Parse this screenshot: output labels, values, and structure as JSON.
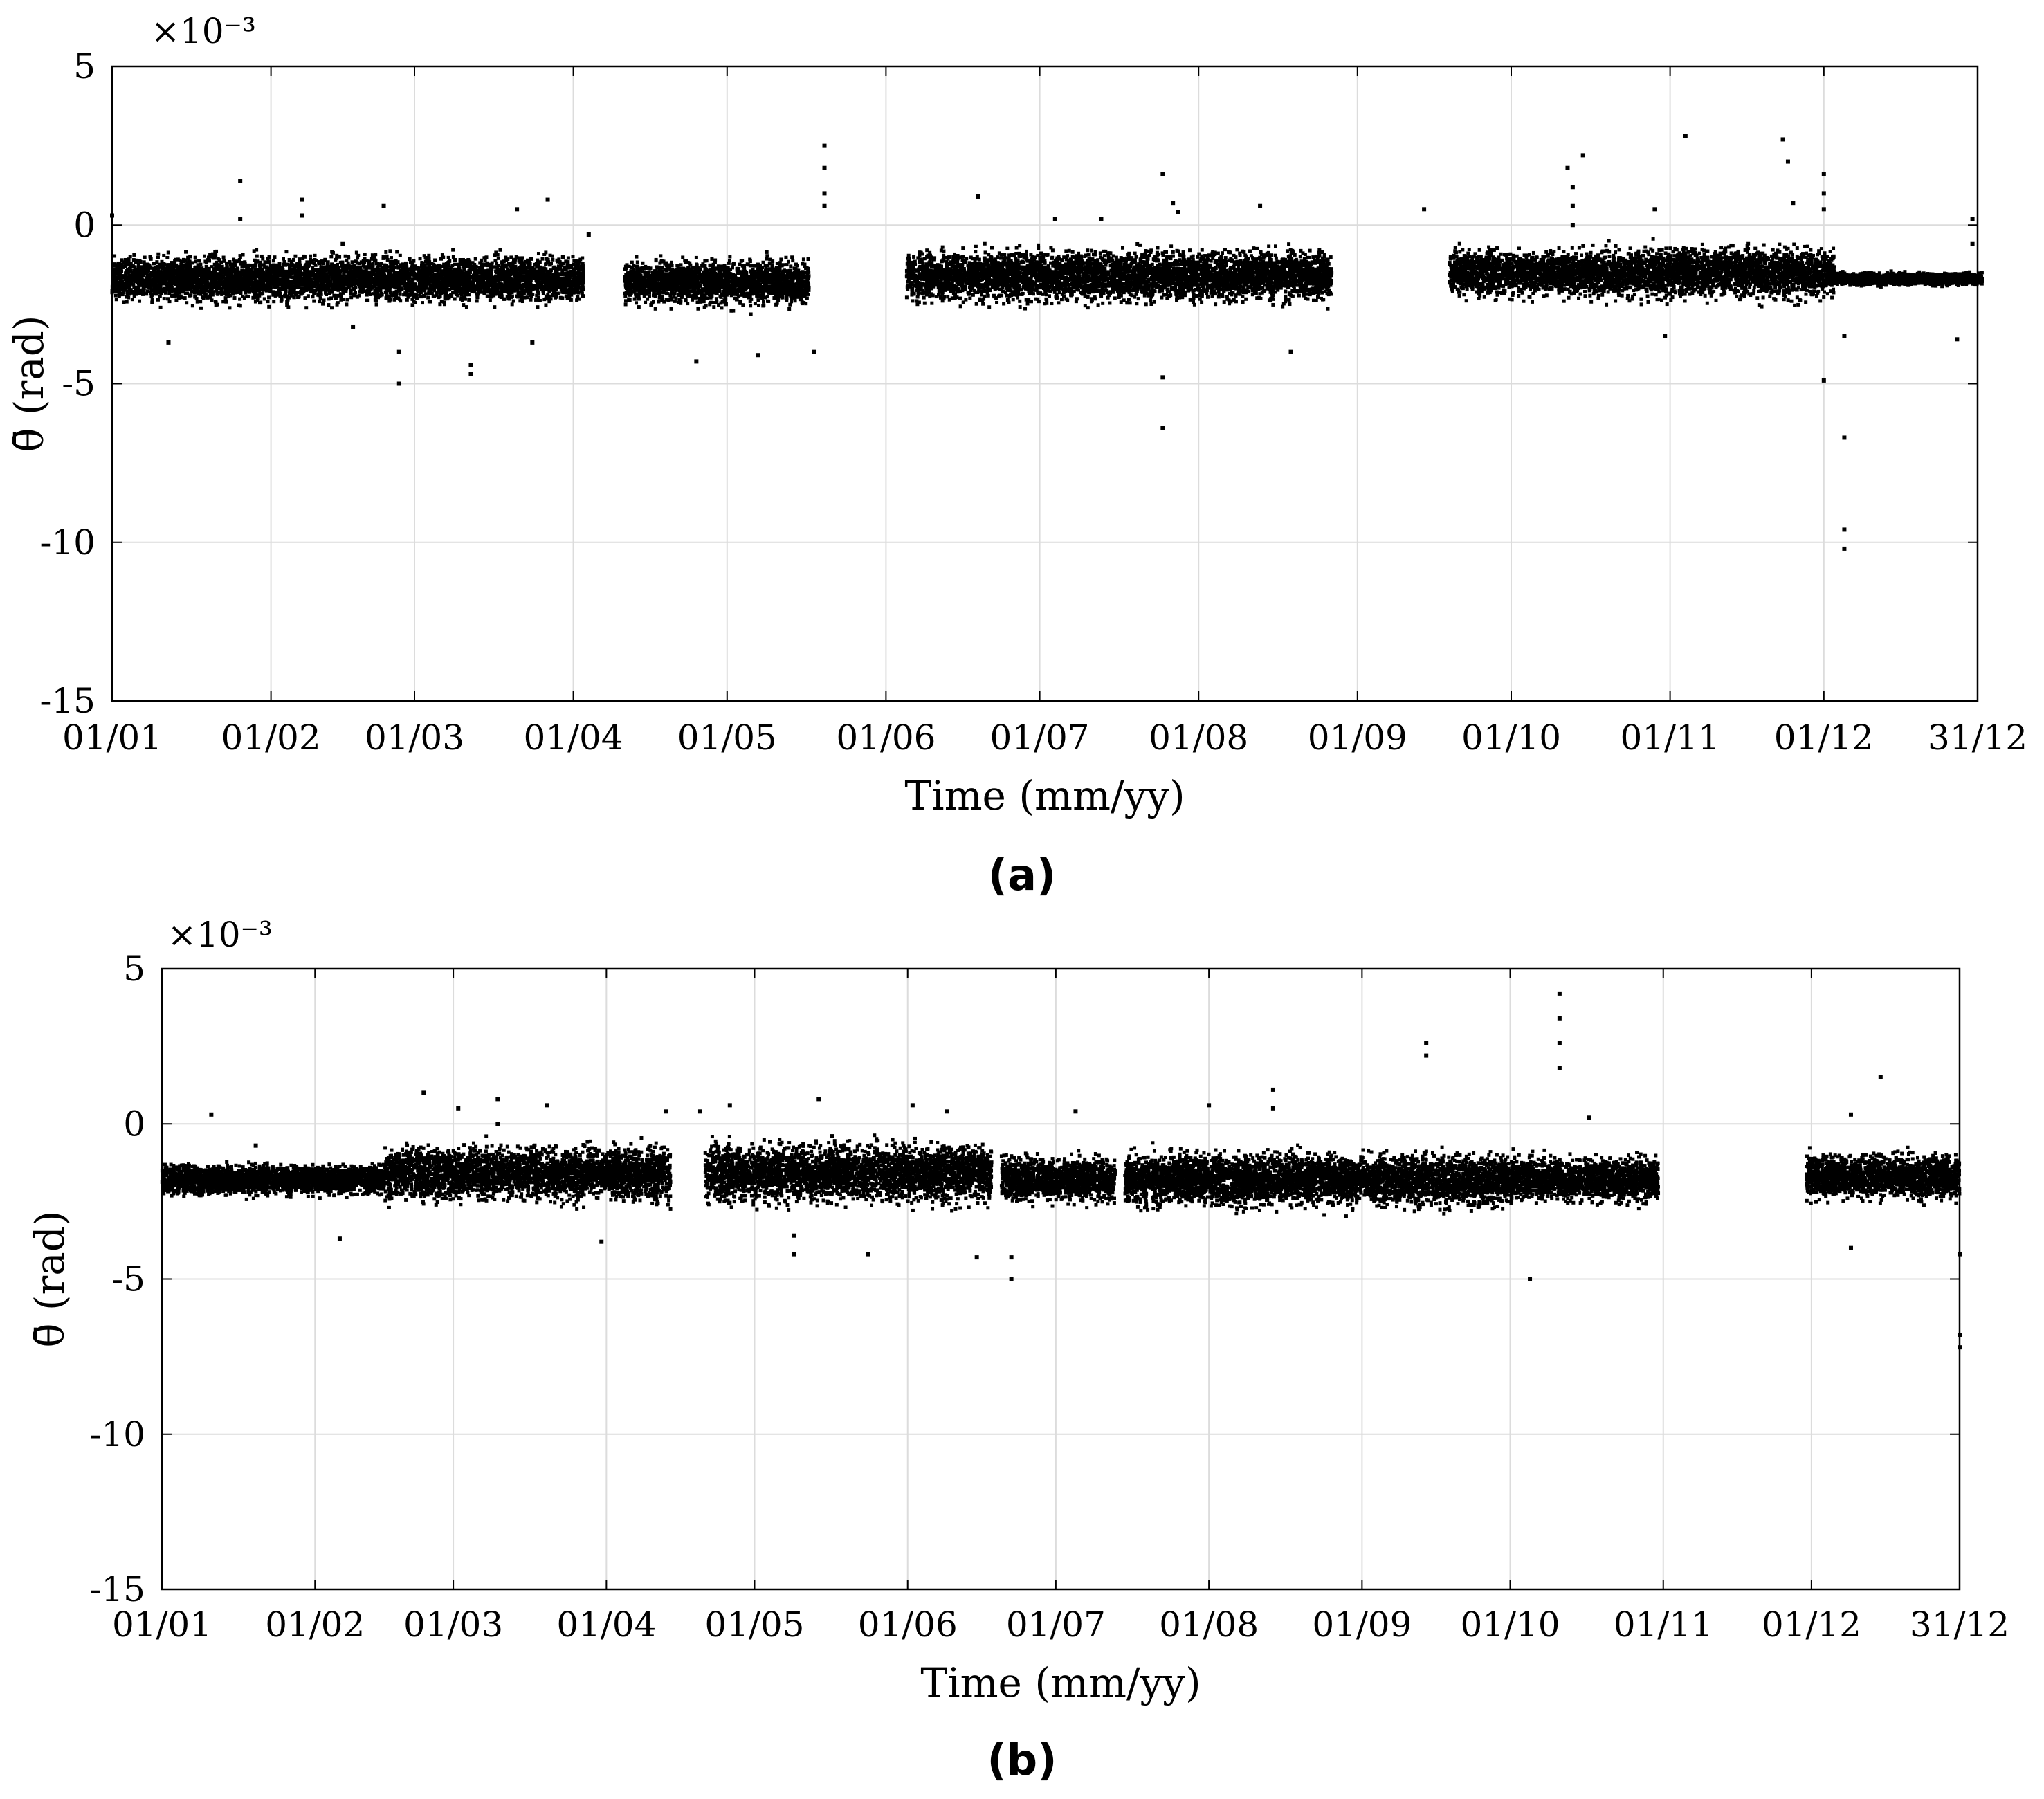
{
  "chart_data": [
    {
      "type": "scatter",
      "panel_label": "(a)",
      "xlabel": "Time (mm/yy)",
      "ylabel": "θ̄ (rad)",
      "y_exponent_label": "×10⁻³",
      "ylim": [
        -15,
        5
      ],
      "yticks": [
        "5",
        "0",
        "-5",
        "-10",
        "-15"
      ],
      "xticks": [
        "01/01",
        "01/02",
        "01/03",
        "01/04",
        "01/05",
        "01/06",
        "01/07",
        "01/08",
        "01/09",
        "01/10",
        "01/11",
        "01/12",
        "31/12"
      ],
      "grid": true,
      "marker_color": "#000000",
      "segments": [
        {
          "start_day": 0,
          "end_day": 92,
          "mean": -1.7,
          "spread": 0.45
        },
        {
          "start_day": 100,
          "end_day": 136,
          "mean": -1.8,
          "spread": 0.45
        },
        {
          "start_day": 155,
          "end_day": 238,
          "mean": -1.6,
          "spread": 0.5
        },
        {
          "start_day": 261,
          "end_day": 290,
          "mean": -1.5,
          "spread": 0.45
        },
        {
          "start_day": 290,
          "end_day": 336,
          "mean": -1.5,
          "spread": 0.5
        },
        {
          "start_day": 336,
          "end_day": 365,
          "mean": -1.7,
          "spread": 0.12
        }
      ],
      "outliers": [
        {
          "x": "01/01",
          "y": 0.3
        },
        {
          "x": "26/01",
          "y": 1.4
        },
        {
          "x": "26/01",
          "y": 0.2
        },
        {
          "x": "12/01",
          "y": -3.7
        },
        {
          "x": "07/02",
          "y": 0.8
        },
        {
          "x": "07/02",
          "y": 0.3
        },
        {
          "x": "15/02",
          "y": -0.6
        },
        {
          "x": "17/02",
          "y": -3.2
        },
        {
          "x": "26/02",
          "y": -4.0
        },
        {
          "x": "26/02",
          "y": -5.0
        },
        {
          "x": "23/02",
          "y": -1.0
        },
        {
          "x": "12/03",
          "y": -4.4
        },
        {
          "x": "12/03",
          "y": -4.7
        },
        {
          "x": "23/02",
          "y": 0.6
        },
        {
          "x": "21/03",
          "y": 0.5
        },
        {
          "x": "30/03",
          "y": -1.0
        },
        {
          "x": "24/03",
          "y": -3.7
        },
        {
          "x": "27/03",
          "y": 0.8
        },
        {
          "x": "04/04",
          "y": -0.3
        },
        {
          "x": "25/04",
          "y": -4.3
        },
        {
          "x": "07/05",
          "y": -4.1
        },
        {
          "x": "20/05",
          "y": 2.5
        },
        {
          "x": "20/05",
          "y": 1.8
        },
        {
          "x": "20/05",
          "y": 1.0
        },
        {
          "x": "20/05",
          "y": 0.6
        },
        {
          "x": "18/05",
          "y": -4.0
        },
        {
          "x": "19/06",
          "y": 0.9
        },
        {
          "x": "25/07",
          "y": 1.6
        },
        {
          "x": "27/07",
          "y": 0.7
        },
        {
          "x": "28/07",
          "y": 0.4
        },
        {
          "x": "25/07",
          "y": -4.8
        },
        {
          "x": "25/07",
          "y": -6.4
        },
        {
          "x": "13/08",
          "y": 0.6
        },
        {
          "x": "19/08",
          "y": -4.0
        },
        {
          "x": "04/07",
          "y": 0.2
        },
        {
          "x": "13/07",
          "y": 0.2
        },
        {
          "x": "14/09",
          "y": 0.5
        },
        {
          "x": "12/10",
          "y": 1.8
        },
        {
          "x": "15/10",
          "y": 2.2
        },
        {
          "x": "13/10",
          "y": 1.2
        },
        {
          "x": "13/10",
          "y": 0.6
        },
        {
          "x": "13/10",
          "y": 0.0
        },
        {
          "x": "04/11",
          "y": 2.8
        },
        {
          "x": "29/10",
          "y": 0.5
        },
        {
          "x": "31/10",
          "y": -3.5
        },
        {
          "x": "23/11",
          "y": 2.7
        },
        {
          "x": "24/11",
          "y": 2.0
        },
        {
          "x": "25/11",
          "y": 0.7
        },
        {
          "x": "01/12",
          "y": 1.6
        },
        {
          "x": "01/12",
          "y": 1.0
        },
        {
          "x": "01/12",
          "y": 0.5
        },
        {
          "x": "01/12",
          "y": -4.9
        },
        {
          "x": "05/12",
          "y": -3.5
        },
        {
          "x": "05/12",
          "y": -6.7
        },
        {
          "x": "05/12",
          "y": -9.6
        },
        {
          "x": "05/12",
          "y": -10.2
        },
        {
          "x": "30/12",
          "y": 0.2
        },
        {
          "x": "30/12",
          "y": -0.6
        },
        {
          "x": "27/12",
          "y": -3.6
        }
      ]
    },
    {
      "type": "scatter",
      "panel_label": "(b)",
      "xlabel": "Time (mm/yy)",
      "ylabel": "θ̄ (rad)",
      "y_exponent_label": "×10⁻³",
      "ylim": [
        -15,
        5
      ],
      "yticks": [
        "5",
        "0",
        "-5",
        "-10",
        "-15"
      ],
      "xticks": [
        "01/01",
        "01/02",
        "01/03",
        "01/04",
        "01/05",
        "01/06",
        "01/07",
        "01/08",
        "01/09",
        "01/10",
        "01/11",
        "01/12",
        "31/12"
      ],
      "grid": true,
      "marker_color": "#000000",
      "segments": [
        {
          "start_day": 0,
          "end_day": 45,
          "mean": -1.8,
          "spread": 0.3
        },
        {
          "start_day": 45,
          "end_day": 103,
          "mean": -1.6,
          "spread": 0.55
        },
        {
          "start_day": 110,
          "end_day": 168,
          "mean": -1.6,
          "spread": 0.6
        },
        {
          "start_day": 170,
          "end_day": 193,
          "mean": -1.8,
          "spread": 0.45
        },
        {
          "start_day": 195,
          "end_day": 272,
          "mean": -1.8,
          "spread": 0.55
        },
        {
          "start_day": 272,
          "end_day": 303,
          "mean": -1.8,
          "spread": 0.45
        },
        {
          "start_day": 333,
          "end_day": 364,
          "mean": -1.7,
          "spread": 0.45
        }
      ],
      "outliers": [
        {
          "x": "11/01",
          "y": 0.3
        },
        {
          "x": "20/01",
          "y": -0.7
        },
        {
          "x": "06/02",
          "y": -3.7
        },
        {
          "x": "23/02",
          "y": 1.0
        },
        {
          "x": "02/03",
          "y": 0.5
        },
        {
          "x": "10/03",
          "y": 0.8
        },
        {
          "x": "10/03",
          "y": 0.0
        },
        {
          "x": "20/03",
          "y": 0.6
        },
        {
          "x": "31/03",
          "y": -3.8
        },
        {
          "x": "13/04",
          "y": 0.4
        },
        {
          "x": "20/04",
          "y": 0.4
        },
        {
          "x": "26/04",
          "y": 0.6
        },
        {
          "x": "09/05",
          "y": -4.2
        },
        {
          "x": "09/05",
          "y": -3.6
        },
        {
          "x": "14/05",
          "y": 0.8
        },
        {
          "x": "24/05",
          "y": -4.2
        },
        {
          "x": "02/06",
          "y": 0.6
        },
        {
          "x": "09/06",
          "y": 0.4
        },
        {
          "x": "15/06",
          "y": -4.3
        },
        {
          "x": "22/06",
          "y": -4.3
        },
        {
          "x": "22/06",
          "y": -5.0
        },
        {
          "x": "05/07",
          "y": 0.4
        },
        {
          "x": "01/08",
          "y": 0.6
        },
        {
          "x": "14/08",
          "y": 1.1
        },
        {
          "x": "14/08",
          "y": 0.5
        },
        {
          "x": "14/09",
          "y": 2.6
        },
        {
          "x": "14/09",
          "y": 2.2
        },
        {
          "x": "05/10",
          "y": -5.0
        },
        {
          "x": "11/10",
          "y": 4.2
        },
        {
          "x": "11/10",
          "y": 3.4
        },
        {
          "x": "11/10",
          "y": 2.6
        },
        {
          "x": "11/10",
          "y": 1.8
        },
        {
          "x": "17/10",
          "y": 0.2
        },
        {
          "x": "09/12",
          "y": 0.3
        },
        {
          "x": "09/12",
          "y": -4.0
        },
        {
          "x": "15/12",
          "y": 1.5
        },
        {
          "x": "31/12",
          "y": -4.2
        },
        {
          "x": "31/12",
          "y": -6.8
        },
        {
          "x": "31/12",
          "y": -7.2
        }
      ]
    }
  ]
}
